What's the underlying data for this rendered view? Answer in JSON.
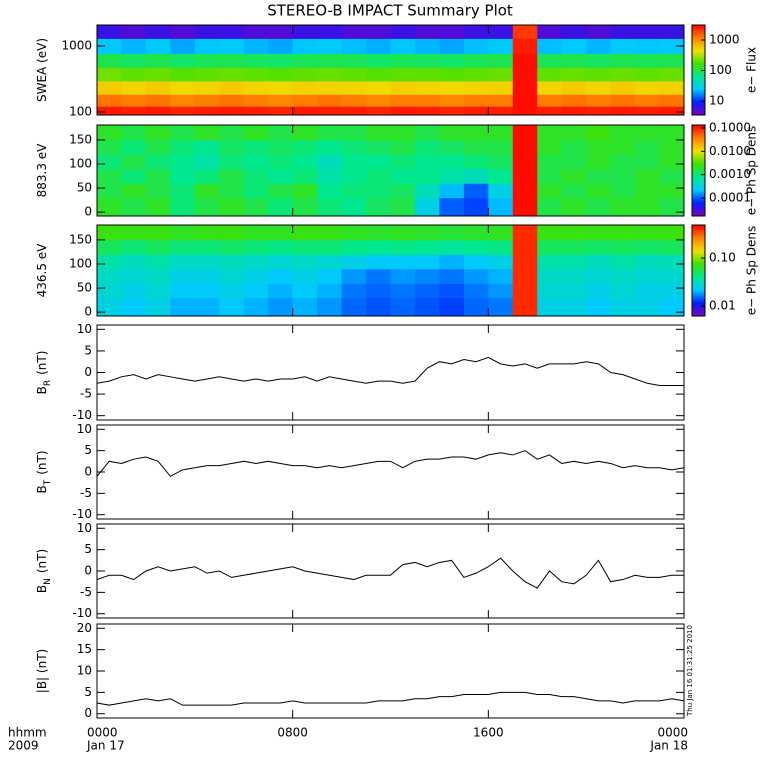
{
  "chart_data": [
    {
      "type": "heatmap",
      "title": "STEREO-B IMPACT Summary Plot",
      "ylabel": "SWEA (eV)",
      "zlabel": "e− Flux",
      "xlim": [
        0,
        24
      ],
      "ylim": [
        90,
        2080
      ],
      "ylog": true,
      "yticks": [
        100,
        1000
      ],
      "zlim": [
        3.5,
        3100
      ],
      "zlog": true,
      "zticks": [
        10,
        100,
        1000
      ],
      "colormap": [
        "#8000c0",
        "#0020ff",
        "#00c8ff",
        "#00e890",
        "#40e000",
        "#f0e000",
        "#ff8000",
        "#ff0000"
      ],
      "x": [
        0.5,
        1.5,
        2.5,
        3.5,
        4.5,
        5.5,
        6.5,
        7.5,
        8.5,
        9.5,
        10.5,
        11.5,
        12.5,
        13.5,
        14.5,
        15.5,
        16.5,
        17.5,
        18.5,
        19.5,
        20.5,
        21.5,
        22.5,
        23.5
      ],
      "y": [
        100,
        150,
        230,
        380,
        600,
        1000,
        1700
      ],
      "z": [
        [
          2600,
          2500,
          2600,
          2400,
          2500,
          2600,
          2500,
          2400,
          2600,
          2500,
          2500,
          2400,
          2600,
          2500,
          2400,
          2500,
          2500,
          2800,
          2500,
          2600,
          2500,
          2600,
          2500,
          2600
        ],
        [
          1300,
          1200,
          1300,
          1100,
          1200,
          1300,
          1200,
          1100,
          1200,
          1300,
          1200,
          1100,
          1200,
          1200,
          1100,
          1200,
          1200,
          2800,
          1200,
          1300,
          1200,
          1300,
          1200,
          1300
        ],
        [
          550,
          500,
          550,
          480,
          500,
          550,
          500,
          480,
          520,
          500,
          500,
          480,
          520,
          500,
          480,
          500,
          520,
          2800,
          500,
          550,
          500,
          550,
          500,
          520
        ],
        [
          220,
          200,
          210,
          190,
          200,
          210,
          200,
          190,
          200,
          210,
          200,
          190,
          200,
          200,
          190,
          200,
          210,
          2800,
          200,
          210,
          200,
          210,
          200,
          210
        ],
        [
          100,
          90,
          100,
          85,
          95,
          100,
          90,
          85,
          95,
          100,
          95,
          85,
          95,
          90,
          85,
          95,
          100,
          2800,
          95,
          100,
          90,
          100,
          95,
          100
        ],
        [
          25,
          22,
          25,
          20,
          24,
          25,
          22,
          20,
          24,
          25,
          23,
          21,
          24,
          22,
          20,
          23,
          25,
          2500,
          23,
          25,
          22,
          25,
          24,
          25
        ],
        [
          6,
          5,
          6,
          5,
          6,
          6,
          5,
          5,
          6,
          6,
          5,
          5,
          6,
          5,
          5,
          6,
          6,
          2000,
          5,
          6,
          5,
          6,
          6,
          6
        ]
      ]
    },
    {
      "type": "heatmap",
      "ylabel": "883.3 eV",
      "zlabel": "e− Ph Sp Dens",
      "xlim": [
        0,
        24
      ],
      "ylim": [
        -8,
        181
      ],
      "yticks": [
        0,
        50,
        100,
        150
      ],
      "zlim": [
        1.7e-05,
        0.134
      ],
      "zlog": true,
      "zticks": [
        0.0001,
        {
          "value": 0.001,
          "label": "0.0010"
        },
        {
          "value": 0.01,
          "label": "0.0100"
        },
        {
          "value": 0.1,
          "label": "0.1000"
        }
      ],
      "colormap": [
        "#8000c0",
        "#0020ff",
        "#00c8ff",
        "#00e890",
        "#40e000",
        "#f0e000",
        "#ff8000",
        "#ff0000"
      ],
      "x": [
        0.5,
        1.5,
        2.5,
        3.5,
        4.5,
        5.5,
        6.5,
        7.5,
        8.5,
        9.5,
        10.5,
        11.5,
        12.5,
        13.5,
        14.5,
        15.5,
        16.5,
        17.5,
        18.5,
        19.5,
        20.5,
        21.5,
        22.5,
        23.5
      ],
      "y": [
        15,
        45,
        75,
        105,
        135,
        165
      ],
      "z": [
        [
          0.002,
          0.0015,
          0.002,
          0.001,
          0.0015,
          0.002,
          0.0015,
          0.001,
          0.0015,
          0.001,
          0.0008,
          0.0012,
          0.0015,
          0.0003,
          0.0001,
          8e-05,
          0.0002,
          0.12,
          0.0015,
          0.002,
          0.0015,
          0.002,
          0.002,
          0.0015
        ],
        [
          0.0015,
          0.002,
          0.0015,
          0.001,
          0.002,
          0.0015,
          0.001,
          0.0015,
          0.002,
          0.0008,
          0.001,
          0.001,
          0.0012,
          0.0005,
          0.0002,
          0.0001,
          0.0003,
          0.12,
          0.002,
          0.0015,
          0.002,
          0.0015,
          0.002,
          0.002
        ],
        [
          0.0015,
          0.001,
          0.0015,
          0.0008,
          0.001,
          0.0015,
          0.001,
          0.0008,
          0.001,
          0.0006,
          0.0008,
          0.001,
          0.0008,
          0.0008,
          0.0006,
          0.0005,
          0.0008,
          0.12,
          0.0015,
          0.002,
          0.0015,
          0.0015,
          0.002,
          0.0015
        ],
        [
          0.001,
          0.0015,
          0.001,
          0.0008,
          0.0006,
          0.001,
          0.0008,
          0.001,
          0.0008,
          0.0005,
          0.0008,
          0.0008,
          0.001,
          0.0008,
          0.0008,
          0.001,
          0.0012,
          0.12,
          0.0015,
          0.0015,
          0.002,
          0.0015,
          0.0015,
          0.002
        ],
        [
          0.0015,
          0.001,
          0.0015,
          0.001,
          0.0008,
          0.0012,
          0.001,
          0.0012,
          0.001,
          0.0008,
          0.001,
          0.0012,
          0.0015,
          0.001,
          0.0012,
          0.0015,
          0.0015,
          0.12,
          0.002,
          0.0015,
          0.002,
          0.002,
          0.0015,
          0.002
        ],
        [
          0.002,
          0.0015,
          0.002,
          0.0015,
          0.002,
          0.0015,
          0.002,
          0.0015,
          0.002,
          0.0015,
          0.0015,
          0.002,
          0.002,
          0.0015,
          0.002,
          0.002,
          0.002,
          0.12,
          0.002,
          0.002,
          0.0025,
          0.002,
          0.002,
          0.002
        ]
      ]
    },
    {
      "type": "heatmap",
      "ylabel": "436.5 eV",
      "zlabel": "e− Ph Sp Dens",
      "xlim": [
        0,
        24
      ],
      "ylim": [
        -8,
        181
      ],
      "yticks": [
        0,
        50,
        100,
        150
      ],
      "zlim": [
        0.0062,
        0.49
      ],
      "zlog": true,
      "zticks": [
        0.01,
        {
          "value": 0.1,
          "label": "0.10"
        }
      ],
      "colormap": [
        "#8000c0",
        "#0020ff",
        "#00c8ff",
        "#00e890",
        "#40e000",
        "#f0e000",
        "#ff8000",
        "#ff0000"
      ],
      "x": [
        0.5,
        1.5,
        2.5,
        3.5,
        4.5,
        5.5,
        6.5,
        7.5,
        8.5,
        9.5,
        10.5,
        11.5,
        12.5,
        13.5,
        14.5,
        15.5,
        16.5,
        17.5,
        18.5,
        19.5,
        20.5,
        21.5,
        22.5,
        23.5
      ],
      "y": [
        15,
        45,
        75,
        105,
        135,
        165
      ],
      "z": [
        [
          0.025,
          0.022,
          0.025,
          0.02,
          0.02,
          0.022,
          0.02,
          0.018,
          0.02,
          0.018,
          0.015,
          0.014,
          0.015,
          0.014,
          0.013,
          0.015,
          0.016,
          0.4,
          0.025,
          0.025,
          0.022,
          0.025,
          0.025,
          0.022
        ],
        [
          0.028,
          0.025,
          0.028,
          0.022,
          0.022,
          0.025,
          0.022,
          0.02,
          0.022,
          0.02,
          0.016,
          0.015,
          0.016,
          0.015,
          0.014,
          0.016,
          0.018,
          0.4,
          0.028,
          0.028,
          0.025,
          0.028,
          0.025,
          0.025
        ],
        [
          0.03,
          0.028,
          0.03,
          0.025,
          0.025,
          0.028,
          0.025,
          0.022,
          0.025,
          0.022,
          0.018,
          0.016,
          0.018,
          0.017,
          0.016,
          0.018,
          0.02,
          0.4,
          0.03,
          0.03,
          0.028,
          0.03,
          0.028,
          0.028
        ],
        [
          0.035,
          0.032,
          0.035,
          0.03,
          0.03,
          0.032,
          0.03,
          0.028,
          0.03,
          0.028,
          0.025,
          0.022,
          0.022,
          0.022,
          0.02,
          0.022,
          0.025,
          0.4,
          0.035,
          0.035,
          0.032,
          0.035,
          0.032,
          0.032
        ],
        [
          0.05,
          0.045,
          0.05,
          0.045,
          0.045,
          0.048,
          0.045,
          0.042,
          0.045,
          0.045,
          0.042,
          0.04,
          0.042,
          0.04,
          0.038,
          0.04,
          0.042,
          0.4,
          0.05,
          0.05,
          0.048,
          0.05,
          0.048,
          0.05
        ],
        [
          0.07,
          0.068,
          0.07,
          0.065,
          0.068,
          0.07,
          0.065,
          0.065,
          0.07,
          0.068,
          0.065,
          0.062,
          0.065,
          0.062,
          0.06,
          0.062,
          0.065,
          0.4,
          0.07,
          0.07,
          0.068,
          0.07,
          0.068,
          0.07
        ]
      ]
    },
    {
      "type": "line",
      "ylabel": "B",
      "ylabel_sub": "R",
      "ylabel_unit": "(nT)",
      "color": "#000000",
      "xlim": [
        0,
        24
      ],
      "ylim": [
        -11,
        11
      ],
      "yticks": [
        -10,
        -5,
        0,
        5,
        10
      ],
      "x": [
        0,
        0.5,
        1,
        1.5,
        2,
        2.5,
        3,
        3.5,
        4,
        4.5,
        5,
        5.5,
        6,
        6.5,
        7,
        7.5,
        8,
        8.5,
        9,
        9.5,
        10,
        10.5,
        11,
        11.5,
        12,
        12.5,
        13,
        13.5,
        14,
        14.5,
        15,
        15.5,
        16,
        16.5,
        17,
        17.5,
        18,
        18.5,
        19,
        19.5,
        20,
        20.5,
        21,
        21.5,
        22,
        22.5,
        23,
        23.5,
        24
      ],
      "values": [
        -2.5,
        -2,
        -1,
        -0.5,
        -1.5,
        -0.5,
        -1,
        -1.5,
        -2,
        -1.5,
        -1,
        -1.5,
        -2,
        -1.5,
        -2,
        -1.5,
        -1.5,
        -1,
        -2,
        -1,
        -1.5,
        -2,
        -2.5,
        -2,
        -2,
        -2.5,
        -2,
        1,
        2.5,
        2,
        3,
        2.5,
        3.5,
        2,
        1.5,
        2,
        1,
        2,
        2,
        2,
        2.5,
        2,
        0,
        -0.5,
        -1.5,
        -2.5,
        -3,
        -3,
        -3
      ]
    },
    {
      "type": "line",
      "ylabel": "B",
      "ylabel_sub": "T",
      "ylabel_unit": "(nT)",
      "color": "#000000",
      "xlim": [
        0,
        24
      ],
      "ylim": [
        -11,
        11
      ],
      "yticks": [
        -10,
        -5,
        0,
        5,
        10
      ],
      "x": [
        0,
        0.5,
        1,
        1.5,
        2,
        2.5,
        3,
        3.5,
        4,
        4.5,
        5,
        5.5,
        6,
        6.5,
        7,
        7.5,
        8,
        8.5,
        9,
        9.5,
        10,
        10.5,
        11,
        11.5,
        12,
        12.5,
        13,
        13.5,
        14,
        14.5,
        15,
        15.5,
        16,
        16.5,
        17,
        17.5,
        18,
        18.5,
        19,
        19.5,
        20,
        20.5,
        21,
        21.5,
        22,
        22.5,
        23,
        23.5,
        24
      ],
      "values": [
        -1,
        2.5,
        2,
        3,
        3.5,
        2.5,
        -1,
        0.5,
        1,
        1.5,
        1.5,
        2,
        2.5,
        2,
        2.5,
        2,
        1.5,
        1.5,
        1,
        1.5,
        1,
        1.5,
        2,
        2.5,
        2.5,
        1,
        2.5,
        3,
        3,
        3.5,
        3.5,
        3,
        4,
        4.5,
        4,
        5,
        3,
        4,
        2,
        2.5,
        2,
        2.5,
        2,
        1,
        1.5,
        1,
        1,
        0.5,
        1
      ]
    },
    {
      "type": "line",
      "ylabel": "B",
      "ylabel_sub": "N",
      "ylabel_unit": "(nT)",
      "color": "#000000",
      "xlim": [
        0,
        24
      ],
      "ylim": [
        -11,
        11
      ],
      "yticks": [
        -10,
        -5,
        0,
        5,
        10
      ],
      "x": [
        0,
        0.5,
        1,
        1.5,
        2,
        2.5,
        3,
        3.5,
        4,
        4.5,
        5,
        5.5,
        6,
        6.5,
        7,
        7.5,
        8,
        8.5,
        9,
        9.5,
        10,
        10.5,
        11,
        11.5,
        12,
        12.5,
        13,
        13.5,
        14,
        14.5,
        15,
        15.5,
        16,
        16.5,
        17,
        17.5,
        18,
        18.5,
        19,
        19.5,
        20,
        20.5,
        21,
        21.5,
        22,
        22.5,
        23,
        23.5,
        24
      ],
      "values": [
        -2,
        -1,
        -1,
        -2,
        0,
        1,
        0,
        0.5,
        1,
        -0.5,
        0,
        -1.5,
        -1,
        -0.5,
        0,
        0.5,
        1,
        0,
        -0.5,
        -1,
        -1.5,
        -2,
        -1,
        -1,
        -1,
        1.5,
        2,
        1,
        2,
        2.5,
        -1.5,
        -0.5,
        1,
        3,
        0,
        -2.5,
        -4,
        0,
        -2.5,
        -3,
        -1,
        2.5,
        -2.5,
        -2,
        -1,
        -1.5,
        -1.5,
        -1,
        -1
      ]
    },
    {
      "type": "line",
      "ylabel": "|B| (nT)",
      "color": "#000000",
      "xlim": [
        0,
        24
      ],
      "ylim": [
        -1,
        21
      ],
      "yticks": [
        0,
        5,
        10,
        15,
        20
      ],
      "x": [
        0,
        0.5,
        1,
        1.5,
        2,
        2.5,
        3,
        3.5,
        4,
        4.5,
        5,
        5.5,
        6,
        6.5,
        7,
        7.5,
        8,
        8.5,
        9,
        9.5,
        10,
        10.5,
        11,
        11.5,
        12,
        12.5,
        13,
        13.5,
        14,
        14.5,
        15,
        15.5,
        16,
        16.5,
        17,
        17.5,
        18,
        18.5,
        19,
        19.5,
        20,
        20.5,
        21,
        21.5,
        22,
        22.5,
        23,
        23.5,
        24
      ],
      "values": [
        2.5,
        2,
        2.5,
        3,
        3.5,
        3,
        3.5,
        2,
        2,
        2,
        2,
        2,
        2.5,
        2.5,
        2.5,
        2.5,
        3,
        2.5,
        2.5,
        2.5,
        2.5,
        2.5,
        2.5,
        3,
        3,
        3,
        3.5,
        3.5,
        4,
        4,
        4.5,
        4.5,
        4.5,
        5,
        5,
        5,
        4.5,
        4.5,
        4,
        4,
        3.5,
        3,
        3,
        2.5,
        3,
        3,
        3,
        3.5,
        3
      ],
      "xticks": [
        {
          "value": 0,
          "label": "0000"
        },
        {
          "value": 8,
          "label": "0800"
        },
        {
          "value": 16,
          "label": "1600"
        },
        {
          "value": 24,
          "label": "0000"
        }
      ],
      "xtick_dates": [
        {
          "value": 0,
          "label": "Jan 17"
        },
        {
          "value": 24,
          "label": "Jan 18"
        }
      ],
      "xaxis_label": [
        "hhmm",
        "2009"
      ],
      "stamp": "Thu Jan 16 01:31:25 2010"
    }
  ]
}
